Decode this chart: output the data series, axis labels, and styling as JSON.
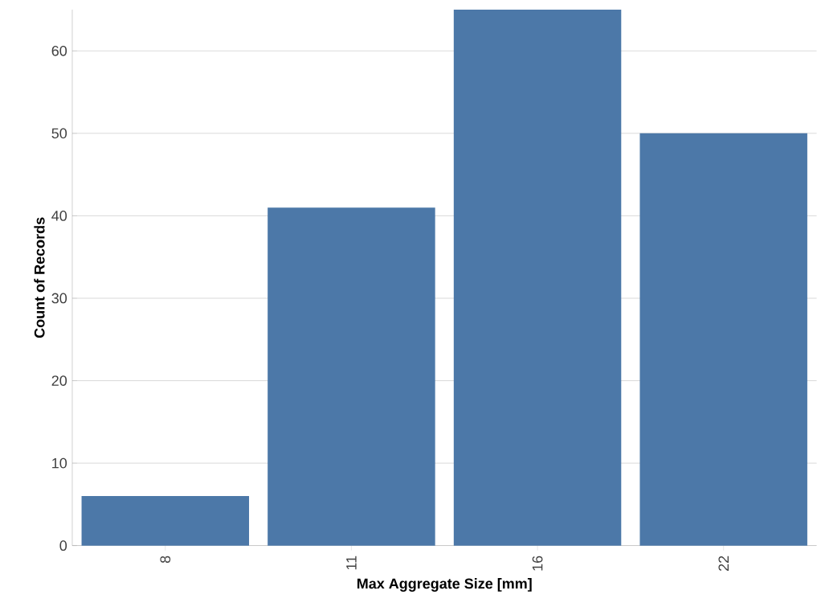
{
  "chart_data": {
    "type": "bar",
    "xlabel": "Max Aggregate Size [mm]",
    "ylabel": "Count of Records",
    "categories": [
      "8",
      "11",
      "16",
      "22"
    ],
    "values": [
      6,
      41,
      65,
      50
    ],
    "color": "#4c78a8",
    "ylim": [
      0,
      65
    ],
    "yticks": [
      0,
      10,
      20,
      30,
      40,
      50,
      60
    ],
    "grid": "y"
  }
}
